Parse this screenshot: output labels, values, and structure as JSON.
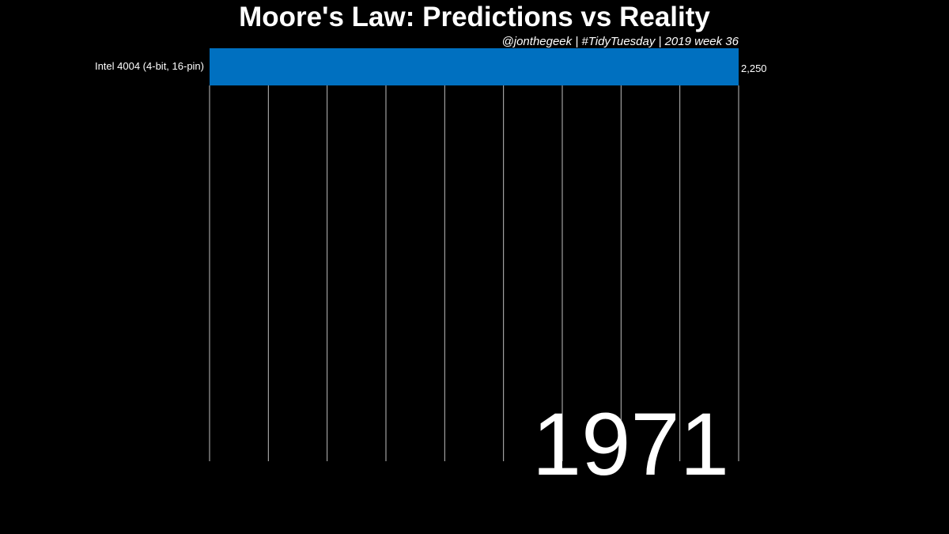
{
  "chart_data": {
    "type": "bar",
    "orientation": "horizontal",
    "title": "Moore's Law: Predictions vs Reality",
    "subtitle": "@jonthegeek | #TidyTuesday | 2019 week 36",
    "year_label": "1971",
    "categories": [
      "Intel 4004 (4-bit, 16-pin)"
    ],
    "values": [
      2250
    ],
    "value_labels": [
      "2,250"
    ],
    "xlim": [
      0,
      2250
    ],
    "gridline_count": 10,
    "grid": true,
    "legend": "none",
    "colors": {
      "background": "#000000",
      "bar": "#0070C0",
      "text": "#FFFFFF",
      "grid": "#FFFFFF"
    }
  }
}
